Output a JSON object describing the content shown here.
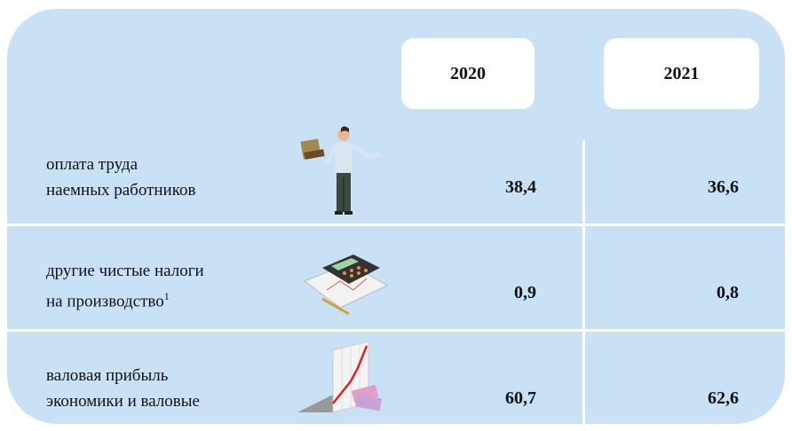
{
  "header": {
    "columns": [
      "2020",
      "2021"
    ]
  },
  "rows": [
    {
      "label": [
        "оплата труда",
        "наемных работников"
      ],
      "values": [
        "38,4",
        "36,6"
      ]
    },
    {
      "label": [
        "другие чистые налоги",
        "на производство"
      ],
      "footnote": "1",
      "values": [
        "0,9",
        "0,8"
      ]
    },
    {
      "label": [
        "валовая прибыль",
        "экономики и валовые"
      ],
      "values": [
        "60,7",
        "62,6"
      ]
    }
  ]
}
